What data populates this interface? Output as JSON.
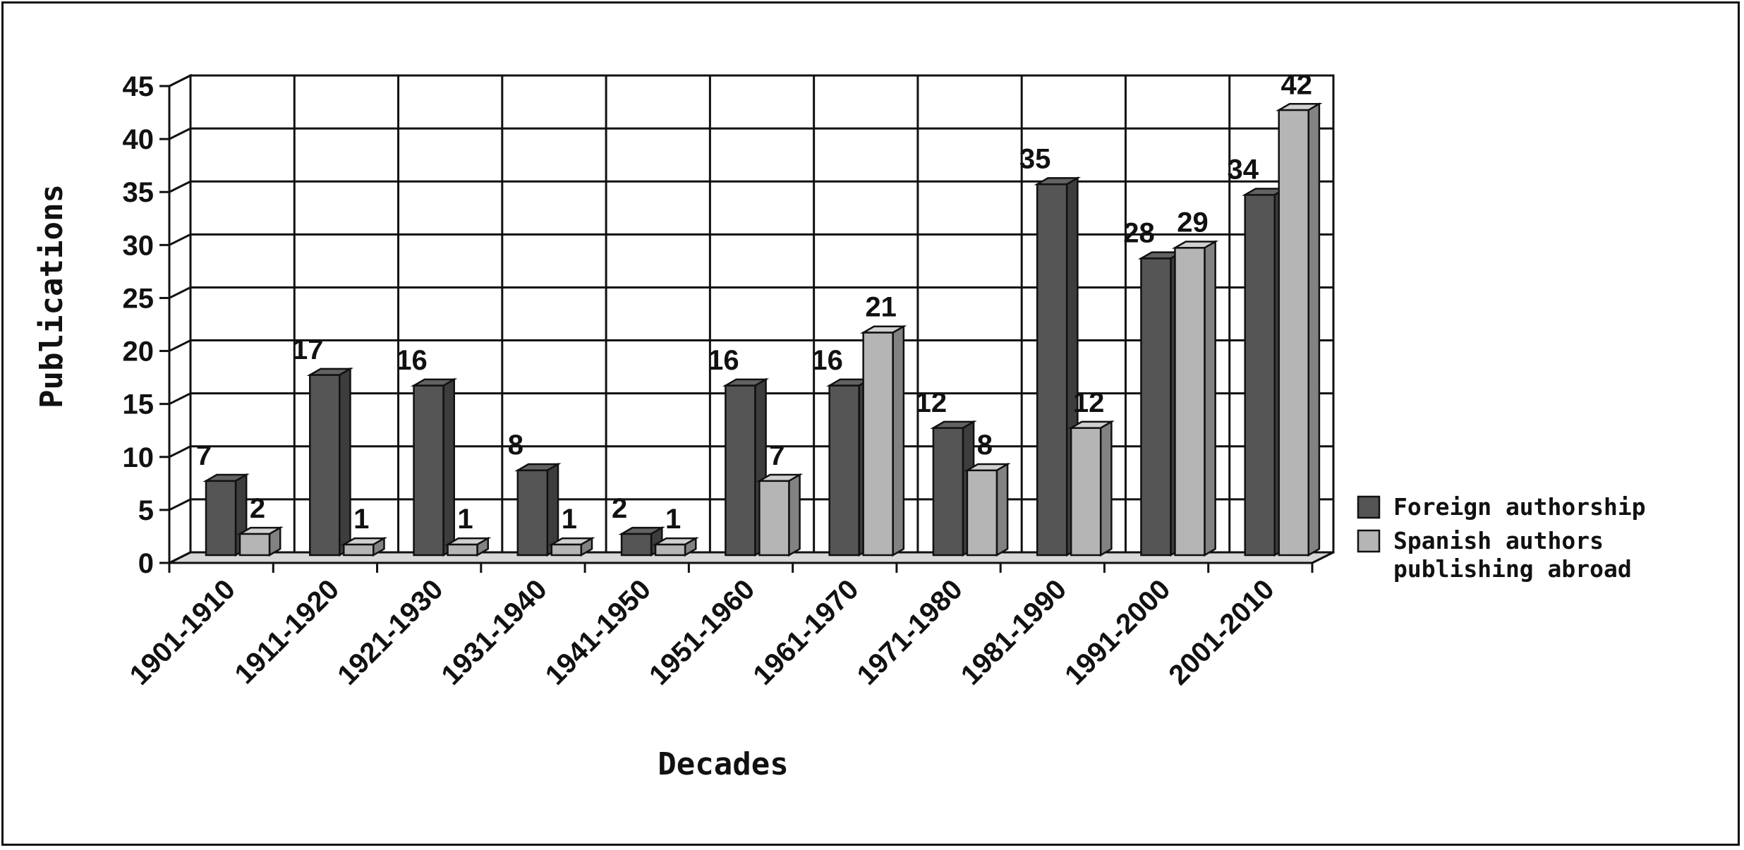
{
  "chart_data": {
    "type": "bar",
    "title": "",
    "xlabel": "Decades",
    "ylabel": "Publications",
    "ylim": [
      0,
      45
    ],
    "yticks": [
      "0",
      "5",
      "10",
      "15",
      "20",
      "25",
      "30",
      "35",
      "40",
      "45"
    ],
    "grid": true,
    "legend_position": "right",
    "categories": [
      "1901-1910",
      "1911-1920",
      "1921-1930",
      "1931-1940",
      "1941-1950",
      "1951-1960",
      "1961-1970",
      "1971-1980",
      "1981-1990",
      "1991-2000",
      "2001-2010"
    ],
    "series": [
      {
        "name": "Foreign authorship",
        "values": [
          7,
          17,
          16,
          8,
          2,
          16,
          16,
          12,
          35,
          28,
          34
        ],
        "color": "#555555"
      },
      {
        "name": "Spanish authors publishing abroad",
        "values": [
          2,
          1,
          1,
          1,
          1,
          7,
          21,
          8,
          12,
          29,
          42
        ],
        "color": "#b5b5b5"
      }
    ],
    "legend_lines": [
      [
        "Foreign authorship"
      ],
      [
        "Spanish authors",
        "publishing abroad"
      ]
    ]
  }
}
